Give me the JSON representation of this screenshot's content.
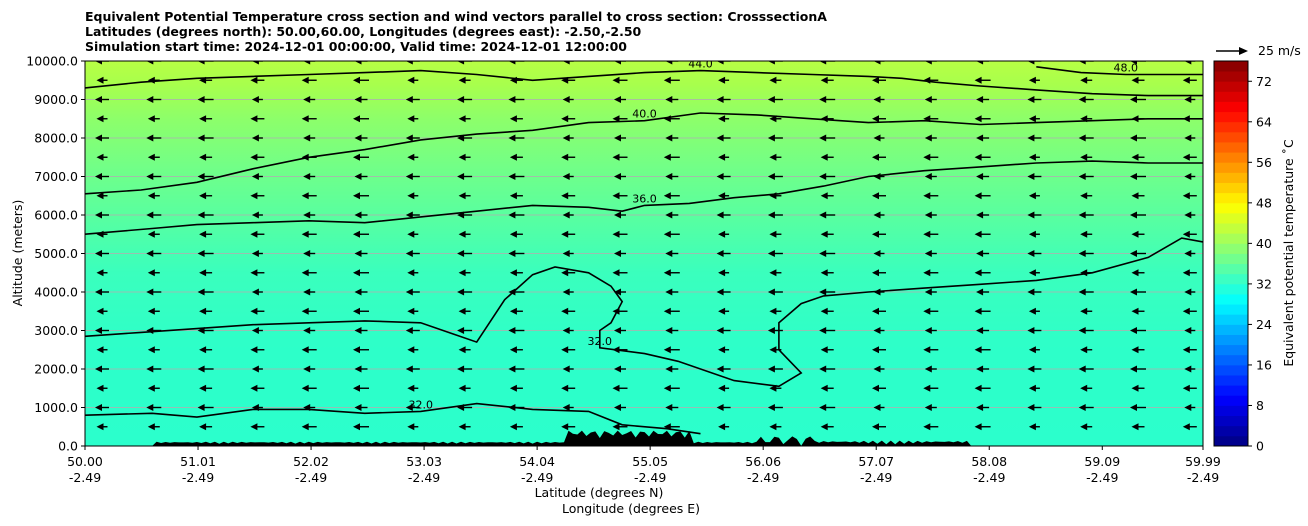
{
  "titles": [
    "Equivalent Potential Temperature cross section and wind vectors parallel to cross section: CrosssectionA",
    "Latitudes (degrees north): 50.00,60.00, Longitudes (degrees east): -2.50,-2.50",
    "Simulation start time: 2024-12-01 00:00:00, Valid time: 2024-12-01 12:00:00"
  ],
  "chart_data": {
    "type": "heatmap",
    "subtype": "filled contour cross section with line contours, wind vectors and terrain",
    "ylabel": "Altitude (meters)",
    "xlabel_lines": [
      "Latitude (degrees N)",
      "Longitude (degrees E)"
    ],
    "ylim": [
      0,
      10000
    ],
    "xlim": [
      50.0,
      59.99
    ],
    "y_ticks": [
      "0.0",
      "1000.0",
      "2000.0",
      "3000.0",
      "4000.0",
      "5000.0",
      "6000.0",
      "7000.0",
      "8000.0",
      "9000.0",
      "10000.0"
    ],
    "x_ticks": [
      {
        "lat": "50.00",
        "lon": "-2.49"
      },
      {
        "lat": "51.01",
        "lon": "-2.49"
      },
      {
        "lat": "52.02",
        "lon": "-2.49"
      },
      {
        "lat": "53.03",
        "lon": "-2.49"
      },
      {
        "lat": "54.04",
        "lon": "-2.49"
      },
      {
        "lat": "55.05",
        "lon": "-2.49"
      },
      {
        "lat": "56.06",
        "lon": "-2.49"
      },
      {
        "lat": "57.07",
        "lon": "-2.49"
      },
      {
        "lat": "58.08",
        "lon": "-2.49"
      },
      {
        "lat": "59.09",
        "lon": "-2.49"
      },
      {
        "lat": "59.99",
        "lon": "-2.49"
      }
    ],
    "grid": "horizontal lines at y ticks",
    "colorbar": {
      "label": "Equivalent potential temperature ˚C",
      "min": 0,
      "max": 76,
      "step": 2,
      "ticks": [
        "0",
        "8",
        "16",
        "24",
        "32",
        "40",
        "48",
        "56",
        "64",
        "72"
      ],
      "colormap": "jet"
    },
    "contours": [
      {
        "level": 32,
        "label": "32.0",
        "points": [
          [
            50.0,
            2850
          ],
          [
            50.5,
            2950
          ],
          [
            51.0,
            3050
          ],
          [
            51.5,
            3150
          ],
          [
            52.0,
            3200
          ],
          [
            52.5,
            3250
          ],
          [
            53.0,
            3200
          ],
          [
            53.3,
            2900
          ],
          [
            53.5,
            2700
          ],
          [
            53.75,
            3800
          ],
          [
            54.0,
            4450
          ],
          [
            54.2,
            4650
          ],
          [
            54.5,
            4500
          ],
          [
            54.7,
            4150
          ],
          [
            54.8,
            3750
          ],
          [
            54.7,
            3200
          ],
          [
            54.6,
            3000
          ],
          [
            54.6,
            2550
          ],
          [
            55.0,
            2400
          ],
          [
            55.3,
            2200
          ],
          [
            55.8,
            1700
          ],
          [
            56.2,
            1550
          ],
          [
            56.4,
            1900
          ],
          [
            56.2,
            2500
          ],
          [
            56.2,
            3200
          ],
          [
            56.4,
            3700
          ],
          [
            56.6,
            3900
          ],
          [
            57.0,
            4000
          ],
          [
            57.5,
            4100
          ],
          [
            58.0,
            4200
          ],
          [
            58.5,
            4300
          ],
          [
            59.0,
            4500
          ],
          [
            59.5,
            4900
          ],
          [
            59.8,
            5400
          ],
          [
            59.99,
            5300
          ]
        ]
      },
      {
        "level": 32,
        "label": "32.0",
        "points": [
          [
            50.0,
            800
          ],
          [
            50.6,
            850
          ],
          [
            51.0,
            750
          ],
          [
            51.5,
            950
          ],
          [
            52.0,
            950
          ],
          [
            52.5,
            850
          ],
          [
            53.0,
            900
          ],
          [
            53.5,
            1100
          ],
          [
            54.0,
            950
          ],
          [
            54.5,
            900
          ],
          [
            54.8,
            550
          ],
          [
            55.2,
            450
          ],
          [
            55.5,
            320
          ]
        ]
      },
      {
        "level": 36,
        "label": "36.0",
        "points": [
          [
            50.0,
            5500
          ],
          [
            50.6,
            5650
          ],
          [
            51.0,
            5750
          ],
          [
            51.5,
            5800
          ],
          [
            52.0,
            5850
          ],
          [
            52.5,
            5800
          ],
          [
            53.0,
            5950
          ],
          [
            53.5,
            6100
          ],
          [
            54.0,
            6250
          ],
          [
            54.5,
            6200
          ],
          [
            54.8,
            6100
          ],
          [
            55.0,
            6250
          ],
          [
            55.4,
            6300
          ],
          [
            55.8,
            6450
          ],
          [
            56.2,
            6550
          ],
          [
            56.6,
            6750
          ],
          [
            57.0,
            7000
          ],
          [
            57.5,
            7150
          ],
          [
            58.0,
            7250
          ],
          [
            58.5,
            7350
          ],
          [
            59.0,
            7400
          ],
          [
            59.5,
            7350
          ],
          [
            59.99,
            7350
          ]
        ]
      },
      {
        "level": 40,
        "label": "40.0",
        "points": [
          [
            50.0,
            6550
          ],
          [
            50.5,
            6650
          ],
          [
            51.0,
            6850
          ],
          [
            51.5,
            7200
          ],
          [
            52.0,
            7500
          ],
          [
            52.5,
            7700
          ],
          [
            53.0,
            7950
          ],
          [
            53.5,
            8100
          ],
          [
            54.0,
            8200
          ],
          [
            54.5,
            8400
          ],
          [
            55.0,
            8450
          ],
          [
            55.5,
            8650
          ],
          [
            56.0,
            8600
          ],
          [
            56.5,
            8500
          ],
          [
            57.0,
            8400
          ],
          [
            57.5,
            8450
          ],
          [
            58.0,
            8350
          ],
          [
            58.5,
            8400
          ],
          [
            59.0,
            8450
          ],
          [
            59.5,
            8500
          ],
          [
            59.99,
            8500
          ]
        ]
      },
      {
        "level": 44,
        "label": "44.0",
        "points": [
          [
            50.0,
            9300
          ],
          [
            50.5,
            9450
          ],
          [
            51.0,
            9550
          ],
          [
            51.5,
            9600
          ],
          [
            52.0,
            9650
          ],
          [
            52.5,
            9700
          ],
          [
            53.0,
            9750
          ],
          [
            53.5,
            9650
          ],
          [
            54.0,
            9500
          ],
          [
            54.5,
            9600
          ],
          [
            55.0,
            9700
          ],
          [
            55.5,
            9750
          ],
          [
            56.0,
            9700
          ],
          [
            56.5,
            9650
          ],
          [
            57.0,
            9600
          ],
          [
            57.3,
            9550
          ],
          [
            57.6,
            9450
          ],
          [
            58.0,
            9350
          ],
          [
            58.5,
            9250
          ],
          [
            59.0,
            9150
          ],
          [
            59.5,
            9100
          ],
          [
            59.99,
            9100
          ]
        ]
      },
      {
        "level": 48,
        "label": "48.0",
        "points": [
          [
            58.5,
            9850
          ],
          [
            58.9,
            9700
          ],
          [
            59.3,
            9650
          ],
          [
            59.99,
            9650
          ]
        ]
      }
    ],
    "terrain_note": "low orography along the bottom, highest near 54.4–55.3 N (~400 m)",
    "wind_vectors": {
      "direction": "pointing left (negative along-section)",
      "reference": "25 m/s"
    }
  }
}
